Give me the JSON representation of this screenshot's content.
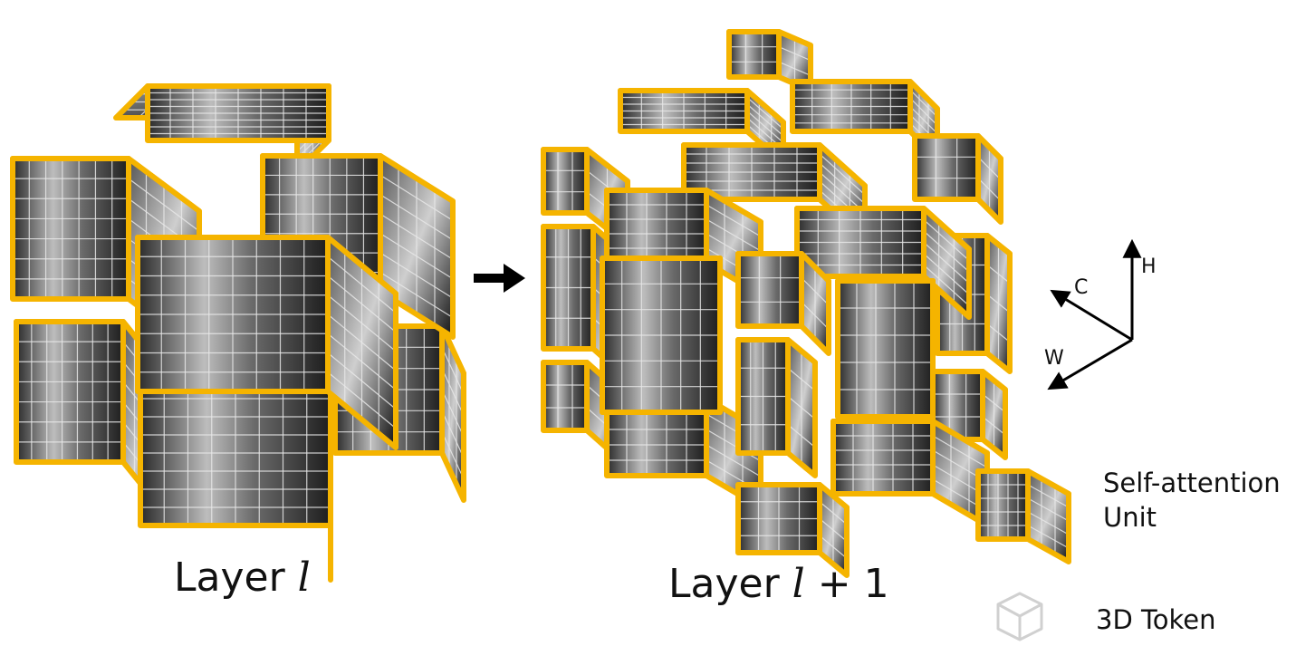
{
  "labels": {
    "layer_l_prefix": "Layer ",
    "layer_l_var": "l",
    "layer_l1_prefix": "Layer ",
    "layer_l1_var": "l",
    "layer_l1_suffix": " + 1"
  },
  "axes": {
    "h": "H",
    "c": "C",
    "w": "W"
  },
  "legend": {
    "self_attention_line1": "Self-attention",
    "self_attention_line2": "Unit",
    "token": "3D Token"
  },
  "colors": {
    "unit_border": "#F5B400",
    "grid_line": "#e8e8e8",
    "arrow": "#000000",
    "token_icon": "#d0d0d0"
  }
}
